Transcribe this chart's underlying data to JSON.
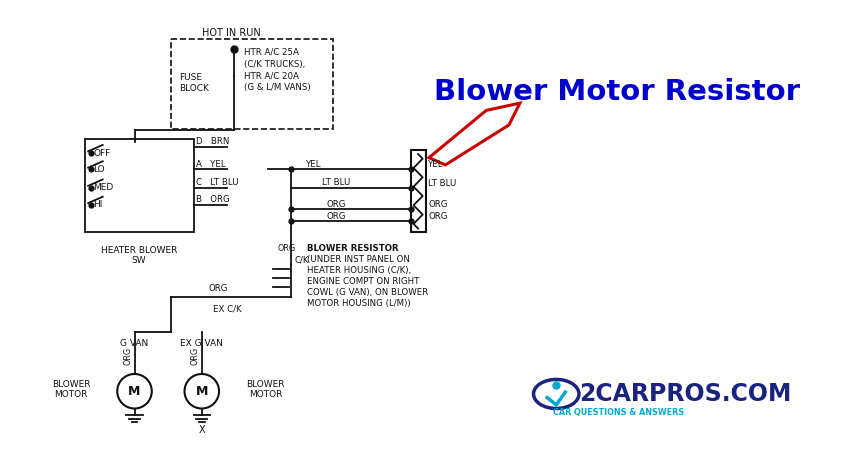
{
  "bg_color": "#ffffff",
  "line_color": "#111111",
  "blower_motor_resistor_label": "Blower Motor Resistor",
  "blower_motor_resistor_color": "#0000CC",
  "arrow_color": "#CC0000",
  "logo_text": "2CARPROS.COM",
  "logo_subtext": "CAR QUESTIONS & ANSWERS",
  "logo_primary": "#1a237e",
  "logo_secondary": "#00aacc",
  "fuse_top_label": "HOT IN RUN",
  "fuse_block_label": "FUSE\nBLOCK",
  "fuse_text": [
    "HTR A/C 25A",
    "(C/K TRUCKS),",
    "HTR A/C 20A",
    "(G & L/M VANS)"
  ],
  "sw_labels": [
    "OFF",
    "LO",
    "MED",
    "HI"
  ],
  "sw_footer": "HEATER BLOWER\nSW",
  "conn_labels": [
    "D   BRN",
    "A   YEL",
    "C   LT BLU",
    "B   ORG"
  ],
  "right_wire_labels": [
    "YEL",
    "LT BLU",
    "ORG",
    "ORG"
  ],
  "resistor_desc": [
    "BLOWER RESISTOR",
    "(UNDER INST PANEL ON",
    "HEATER HOUSING (C/K),",
    "ENGINE COMPT ON RIGHT",
    "COWL (G VAN), ON BLOWER",
    "MOTOR HOUSING (L/M))"
  ],
  "org_label": "ORG",
  "ck_label": "C/K",
  "ex_ck_label": "EX C/K",
  "g_van_label": "G VAN",
  "ex_g_van_label": "EX G VAN",
  "blower_motor_label": "BLOWER\nMOTOR",
  "m_label": "M",
  "x_label": "X"
}
